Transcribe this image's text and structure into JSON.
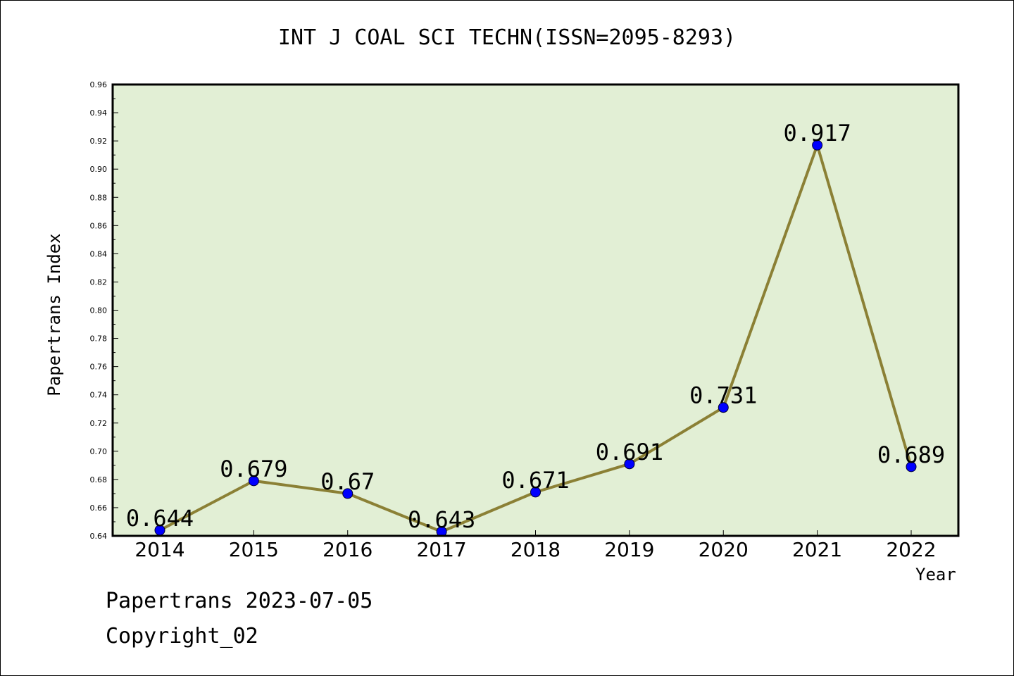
{
  "chart_data": {
    "type": "line",
    "title": "INT J COAL SCI TECHN(ISSN=2095-8293)",
    "xlabel": "Year",
    "ylabel": "Papertrans Index",
    "categories": [
      "2014",
      "2015",
      "2016",
      "2017",
      "2018",
      "2019",
      "2020",
      "2021",
      "2022"
    ],
    "series": [
      {
        "values": [
          0.644,
          0.679,
          0.67,
          0.643,
          0.671,
          0.691,
          0.731,
          0.917,
          0.689
        ],
        "labels": [
          "0.644",
          "0.679",
          "0.67",
          "0.643",
          "0.671",
          "0.691",
          "0.731",
          "0.917",
          "0.689"
        ]
      }
    ],
    "ylim": [
      0.64,
      0.96
    ],
    "yticks": [
      "0.64",
      "0.66",
      "0.68",
      "0.70",
      "0.72",
      "0.74",
      "0.76",
      "0.78",
      "0.80",
      "0.82",
      "0.84",
      "0.86",
      "0.88",
      "0.90",
      "0.92",
      "0.94",
      "0.96"
    ],
    "grid": false,
    "colors": {
      "plot_background": "#e2efd5",
      "line": "#8b8035",
      "marker": "#0000ff"
    }
  },
  "footer": {
    "line1": "Papertrans 2023-07-05",
    "line2": "Copyright_02"
  }
}
